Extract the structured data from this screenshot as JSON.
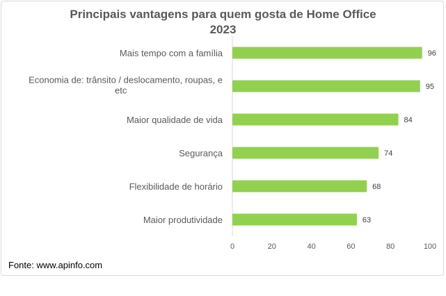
{
  "chart_data": {
    "type": "bar",
    "orientation": "horizontal",
    "title_line1": "Principais vantagens para quem gosta de Home Office",
    "title_line2": "2023",
    "categories": [
      [
        "Mais tempo com a família"
      ],
      [
        "Economia de: trânsito / deslocamento, roupas, e",
        "etc"
      ],
      [
        "Maior qualidade de vida"
      ],
      [
        "Segurança"
      ],
      [
        "Flexibilidade de horário"
      ],
      [
        "Maior produtividade"
      ]
    ],
    "values": [
      96,
      95,
      84,
      74,
      68,
      63
    ],
    "x_ticks": [
      0,
      20,
      40,
      60,
      80,
      100
    ],
    "xlim": [
      0,
      100
    ],
    "grid": false,
    "data_labels": true,
    "bar_color": "#92d050"
  },
  "footer": {
    "source": "Fonte: www.apinfo.com"
  }
}
